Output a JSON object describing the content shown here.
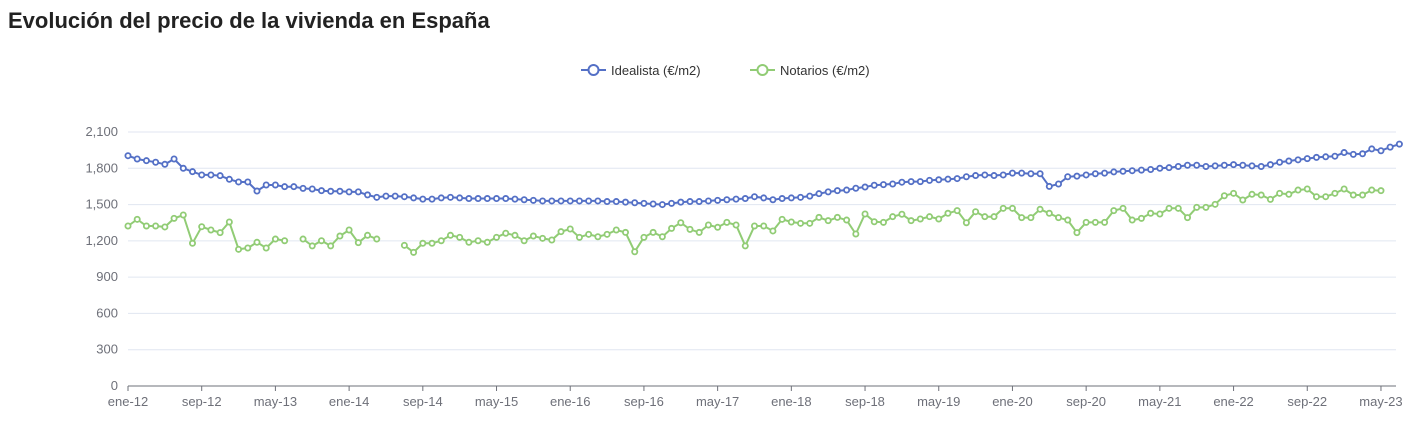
{
  "chart_data": {
    "type": "line",
    "title": "Evolución del precio de la vivienda en España",
    "xlabel": "",
    "ylabel": "",
    "ylim": [
      0,
      2100
    ],
    "yticks": [
      "0",
      "300",
      "600",
      "900",
      "1,200",
      "1,500",
      "1,800",
      "2,100"
    ],
    "ytick_values": [
      0,
      300,
      600,
      900,
      1200,
      1500,
      1800,
      2100
    ],
    "x_start": "ene-12",
    "xtick_labels": [
      "ene-12",
      "sep-12",
      "may-13",
      "ene-14",
      "sep-14",
      "may-15",
      "ene-16",
      "sep-16",
      "may-17",
      "ene-18",
      "sep-18",
      "may-19",
      "ene-20",
      "sep-20",
      "may-21",
      "ene-22",
      "sep-22",
      "may-23"
    ],
    "xtick_step_months": 8,
    "grid": true,
    "legend_position": "top-center",
    "series": [
      {
        "name": "Idealista (€/m2)",
        "color": "#5470c6",
        "values": [
          1904,
          1877,
          1863,
          1850,
          1833,
          1877,
          1800,
          1772,
          1745,
          1745,
          1739,
          1709,
          1687,
          1687,
          1612,
          1662,
          1662,
          1648,
          1648,
          1634,
          1629,
          1615,
          1610,
          1610,
          1605,
          1605,
          1580,
          1560,
          1570,
          1570,
          1565,
          1555,
          1545,
          1545,
          1555,
          1560,
          1555,
          1550,
          1550,
          1550,
          1550,
          1550,
          1545,
          1540,
          1535,
          1530,
          1530,
          1530,
          1530,
          1530,
          1530,
          1530,
          1525,
          1525,
          1520,
          1515,
          1510,
          1505,
          1500,
          1510,
          1520,
          1525,
          1525,
          1530,
          1535,
          1540,
          1545,
          1550,
          1565,
          1555,
          1540,
          1550,
          1555,
          1560,
          1570,
          1590,
          1605,
          1615,
          1620,
          1635,
          1645,
          1660,
          1665,
          1670,
          1685,
          1690,
          1690,
          1700,
          1705,
          1710,
          1715,
          1730,
          1740,
          1745,
          1740,
          1745,
          1760,
          1760,
          1755,
          1755,
          1650,
          1670,
          1730,
          1735,
          1745,
          1755,
          1760,
          1770,
          1775,
          1780,
          1785,
          1790,
          1800,
          1805,
          1815,
          1825,
          1825,
          1815,
          1820,
          1825,
          1830,
          1825,
          1820,
          1815,
          1830,
          1850,
          1860,
          1870,
          1880,
          1890,
          1895,
          1900,
          1930,
          1915,
          1920,
          1960,
          1945,
          1975,
          2000
        ]
      },
      {
        "name": "Notarios (€/m2)",
        "color": "#91cc75",
        "values": [
          1323,
          1378,
          1323,
          1323,
          1315,
          1386,
          1414,
          1180,
          1317,
          1290,
          1268,
          1356,
          1130,
          1141,
          1188,
          1141,
          1215,
          1201,
          null,
          1215,
          1158,
          1201,
          1158,
          1240,
          1290,
          1185,
          1246,
          1215,
          null,
          null,
          1163,
          1105,
          1180,
          1180,
          1201,
          1246,
          1229,
          1188,
          1201,
          1188,
          1229,
          1263,
          1246,
          1201,
          1240,
          1221,
          1207,
          1276,
          1298,
          1229,
          1254,
          1234,
          1254,
          1290,
          1270,
          1110,
          1229,
          1270,
          1234,
          1303,
          1350,
          1295,
          1270,
          1331,
          1312,
          1353,
          1331,
          1158,
          1323,
          1323,
          1282,
          1378,
          1356,
          1345,
          1345,
          1394,
          1367,
          1394,
          1372,
          1257,
          1422,
          1358,
          1353,
          1400,
          1420,
          1367,
          1381,
          1400,
          1381,
          1428,
          1450,
          1350,
          1441,
          1400,
          1400,
          1469,
          1469,
          1392,
          1392,
          1461,
          1428,
          1392,
          1372,
          1268,
          1353,
          1353,
          1353,
          1450,
          1469,
          1372,
          1386,
          1428,
          1422,
          1469,
          1469,
          1392,
          1477,
          1477,
          1502,
          1573,
          1593,
          1538,
          1585,
          1579,
          1543,
          1593,
          1585,
          1620,
          1629,
          1565,
          1565,
          1593,
          1629,
          1579,
          1579,
          1620,
          1615
        ]
      }
    ]
  }
}
